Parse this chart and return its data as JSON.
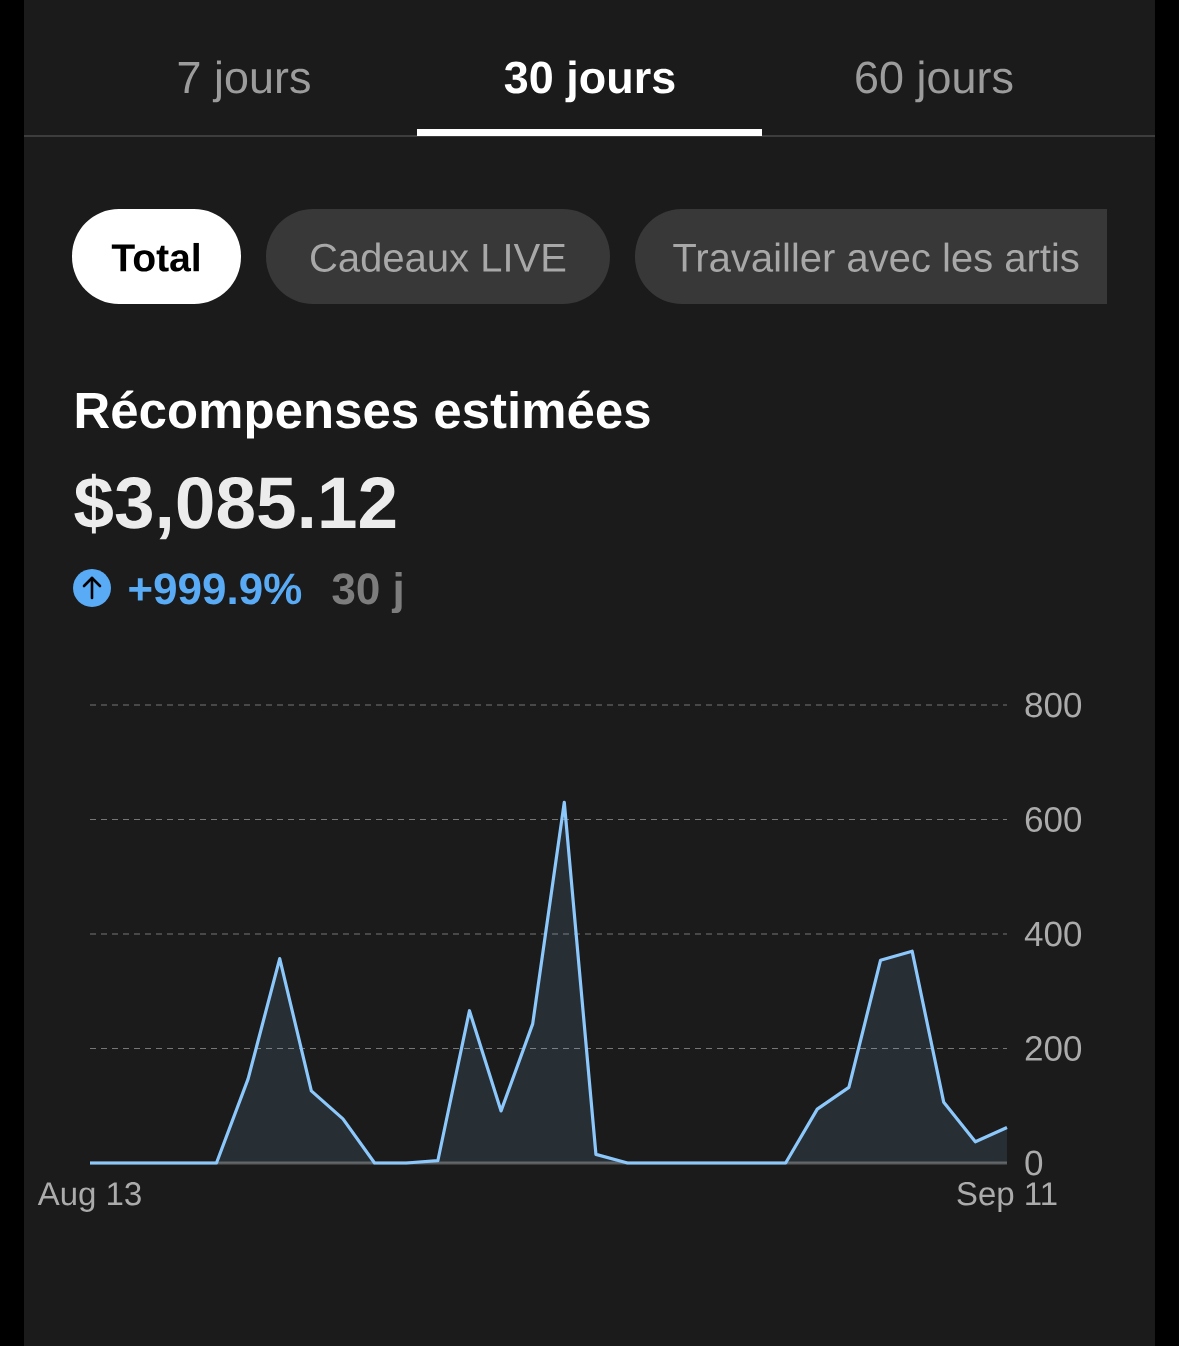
{
  "chart_data": {
    "type": "area",
    "title": "Récompenses estimées",
    "subtitle": "$3,085.12",
    "categories": [
      "Aug 13",
      null,
      null,
      null,
      null,
      null,
      null,
      null,
      null,
      null,
      null,
      null,
      null,
      null,
      null,
      null,
      null,
      null,
      null,
      null,
      null,
      null,
      null,
      null,
      null,
      null,
      null,
      null,
      null,
      "Sep 11"
    ],
    "values": [
      0,
      0,
      0,
      0,
      0,
      147,
      357,
      126,
      77,
      0,
      0,
      4,
      266,
      91,
      243,
      630,
      15,
      0,
      0,
      0,
      0,
      0,
      0,
      94,
      132,
      354,
      370,
      106,
      37,
      62
    ],
    "color": "#8cc8fb",
    "ylim": [
      0,
      800
    ],
    "yticks": [
      0,
      200,
      400,
      600,
      800
    ],
    "grid": "y",
    "annotations": [
      "7 jours",
      "30 jours",
      "60 jours",
      "Total",
      "Cadeaux LIVE",
      "Travailler avec les artis",
      "+999.9%",
      "30 j"
    ]
  }
}
